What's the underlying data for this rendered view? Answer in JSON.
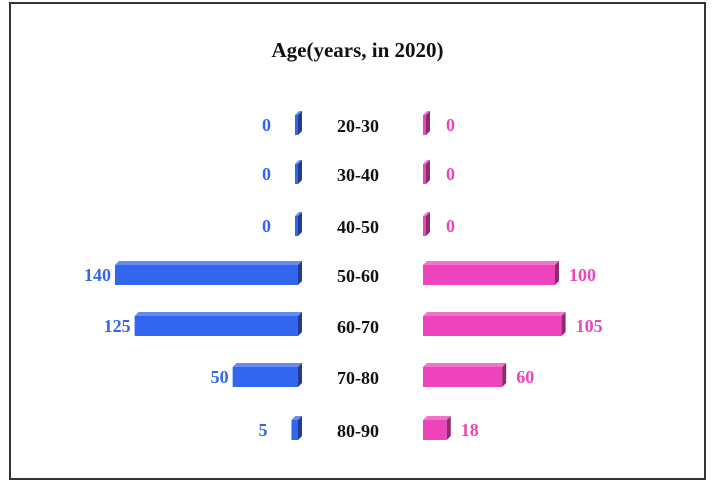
{
  "chart_data": {
    "type": "bar",
    "title": "Age(years, in 2020)",
    "categories": [
      "20-30",
      "30-40",
      "40-50",
      "50-60",
      "60-70",
      "70-80",
      "80-90"
    ],
    "series": [
      {
        "values": [
          0,
          0,
          0,
          140,
          125,
          50,
          5
        ],
        "color": "#3366ee"
      },
      {
        "values": [
          0,
          0,
          0,
          100,
          105,
          60,
          18
        ],
        "color": "#ee44bb"
      }
    ]
  }
}
